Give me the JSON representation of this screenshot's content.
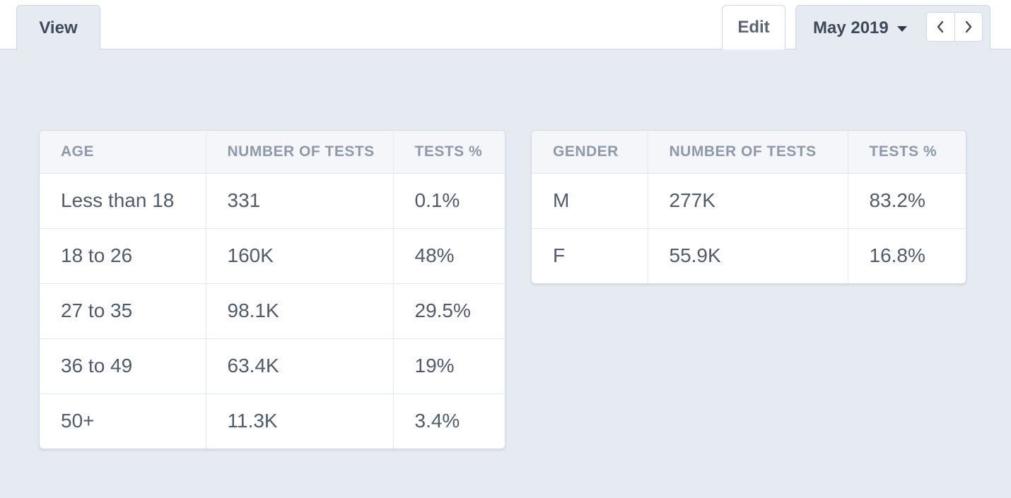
{
  "tabs": {
    "view_label": "View",
    "edit_label": "Edit",
    "date_label": "May 2019"
  },
  "icons": {
    "prev": "chevron-left-icon",
    "next": "chevron-right-icon",
    "dropdown": "caret-down-icon"
  },
  "age_table": {
    "headers": [
      "AGE",
      "NUMBER OF TESTS",
      "TESTS %"
    ],
    "rows": [
      [
        "Less than 18",
        "331",
        "0.1%"
      ],
      [
        "18 to 26",
        "160K",
        "48%"
      ],
      [
        "27 to 35",
        "98.1K",
        "29.5%"
      ],
      [
        "36 to 49",
        "63.4K",
        "19%"
      ],
      [
        "50+",
        "11.3K",
        "3.4%"
      ]
    ]
  },
  "gender_table": {
    "headers": [
      "GENDER",
      "NUMBER OF TESTS",
      "TESTS %"
    ],
    "rows": [
      [
        "M",
        "277K",
        "83.2%"
      ],
      [
        "F",
        "55.9K",
        "16.8%"
      ]
    ]
  },
  "colors": {
    "background": "#e6ebf2",
    "header_text": "#8e99aa",
    "cell_text": "#4f5b6e"
  }
}
